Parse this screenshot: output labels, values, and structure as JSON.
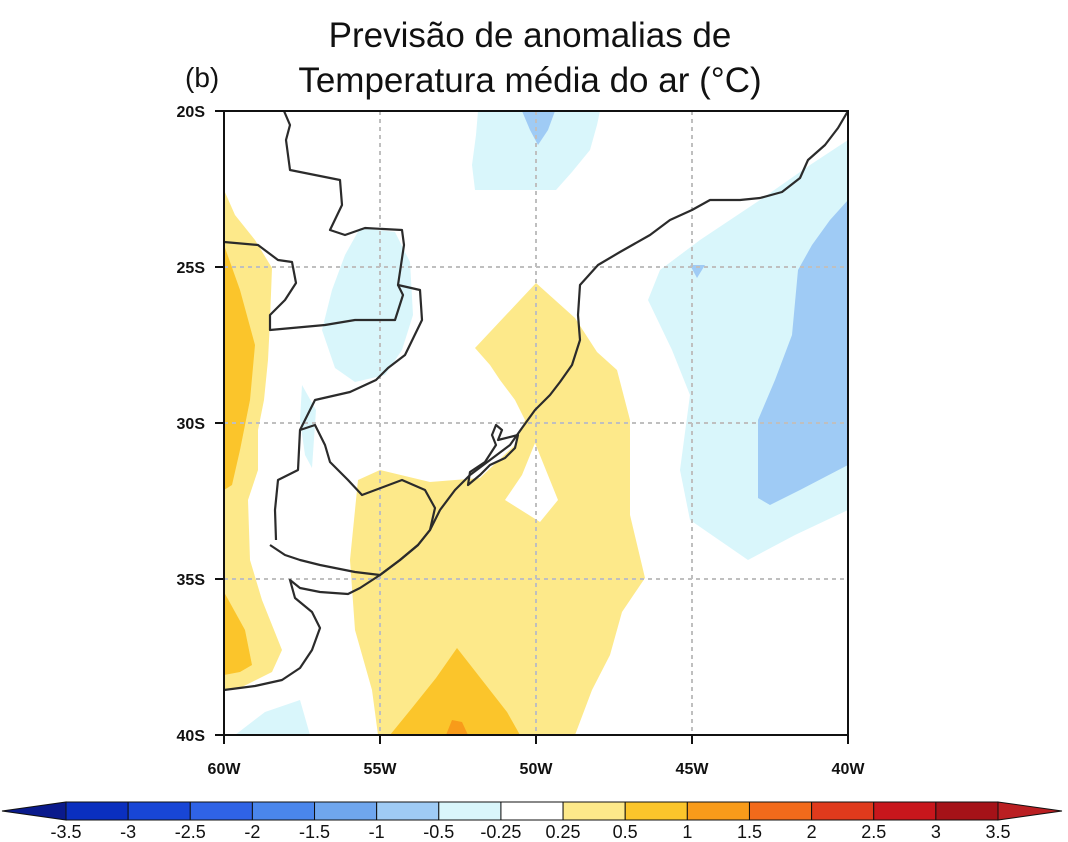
{
  "title": {
    "line1": "Previsão de anomalias de",
    "line2": "Temperatura média do ar (°C)"
  },
  "panel_label": "(b)",
  "map": {
    "lon_range": [
      -60,
      -40
    ],
    "lat_range": [
      -40,
      -20
    ],
    "x_ticks": [
      "60W",
      "55W",
      "50W",
      "45W",
      "40W"
    ],
    "y_ticks": [
      "20S",
      "25S",
      "30S",
      "35S",
      "40S"
    ],
    "gridlines": "dashed gray"
  },
  "colorbar": {
    "labels": [
      "-3.5",
      "-3",
      "-2.5",
      "-2",
      "-1.5",
      "-1",
      "-0.5",
      "-0.25",
      "0.25",
      "0.5",
      "1",
      "1.5",
      "2",
      "2.5",
      "3",
      "3.5"
    ],
    "colors": [
      "#0a1a8c",
      "#0a2fbf",
      "#1846d6",
      "#2f63e6",
      "#4a86ec",
      "#6fa6ee",
      "#9fcbf5",
      "#d9f6fb",
      "#ffffff",
      "#fde98a",
      "#fbc52b",
      "#f89b1a",
      "#f26a1b",
      "#e03a1c",
      "#c8161c",
      "#a51218",
      "#ba1f22"
    ]
  },
  "anomaly_classes": {
    "light_cyan": "-0.5 to -0.25",
    "light_blue": "-1 to -0.5",
    "light_yellow": "0.25 to 0.5",
    "gold": "0.5 to 1",
    "orange": "1 to 1.5"
  }
}
